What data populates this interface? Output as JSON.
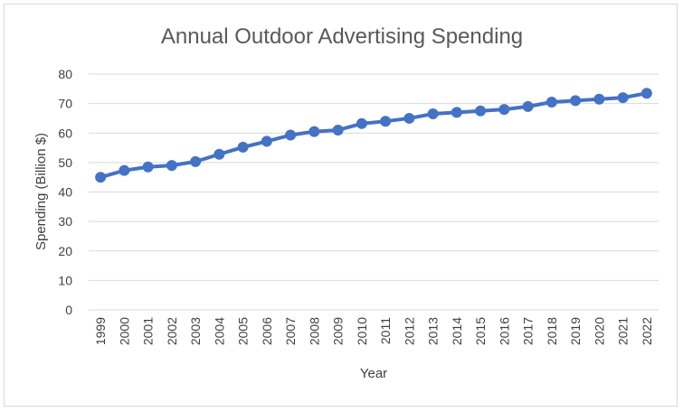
{
  "colors": {
    "series": "#4472c4",
    "grid": "#d9d9d9",
    "text": "#404040",
    "title": "#595959"
  },
  "chart_data": {
    "type": "line",
    "title": "Annual Outdoor Advertising Spending",
    "xlabel": "Year",
    "ylabel": "Spending (Billion $)",
    "ylim": [
      0,
      80
    ],
    "yticks": [
      0,
      10,
      20,
      30,
      40,
      50,
      60,
      70,
      80
    ],
    "grid": true,
    "legend": "none",
    "categories": [
      "1999",
      "2000",
      "2001",
      "2002",
      "2003",
      "2004",
      "2005",
      "2006",
      "2007",
      "2008",
      "2009",
      "2010",
      "2011",
      "2012",
      "2013",
      "2014",
      "2015",
      "2016",
      "2017",
      "2018",
      "2019",
      "2020",
      "2021",
      "2022"
    ],
    "series": [
      {
        "values": [
          45.0,
          47.3,
          48.5,
          49.0,
          50.3,
          52.8,
          55.2,
          57.2,
          59.3,
          60.5,
          61.0,
          63.2,
          64.0,
          65.0,
          66.5,
          67.0,
          67.5,
          68.0,
          69.0,
          70.5,
          71.0,
          71.5,
          72.0,
          73.5
        ]
      }
    ]
  }
}
